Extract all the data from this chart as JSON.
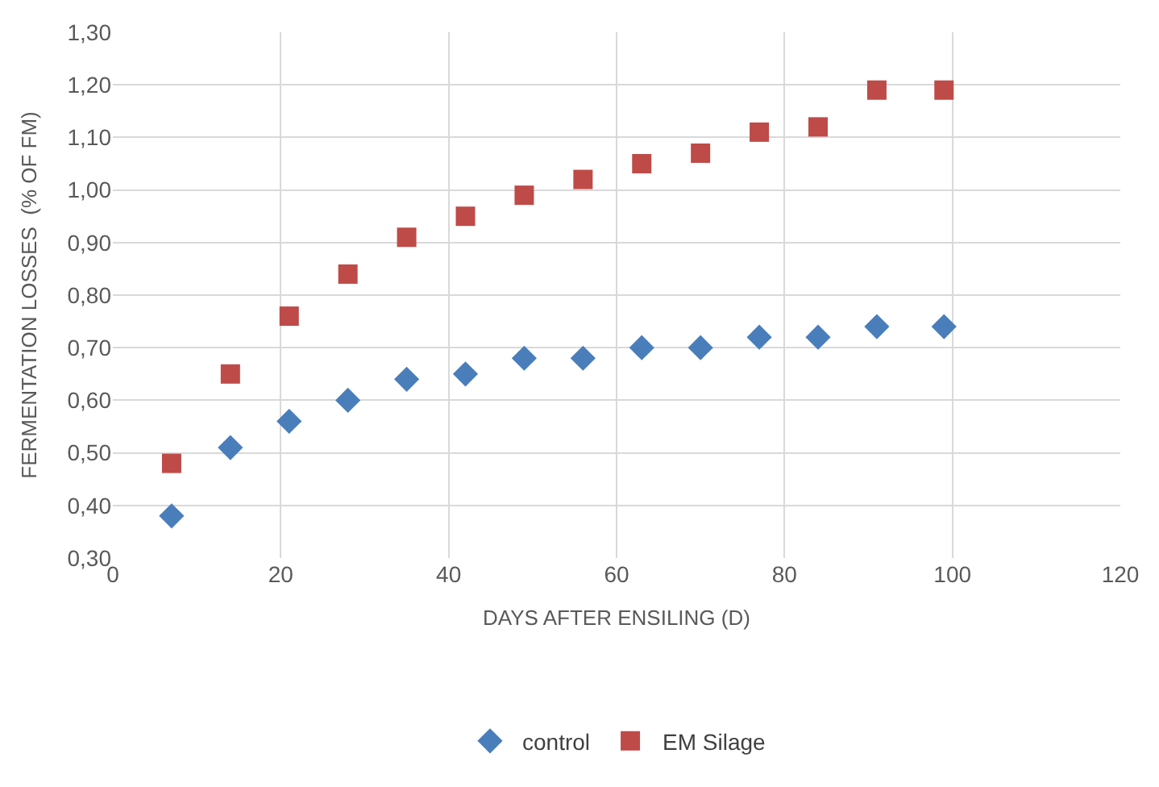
{
  "chart_data": {
    "type": "scatter",
    "xlabel": "DAYS AFTER ENSILING (D)",
    "ylabel": "FERMENTATION LOSSES  (% OF FM)",
    "x": [
      7,
      14,
      21,
      28,
      35,
      42,
      49,
      56,
      63,
      70,
      77,
      84,
      91,
      99
    ],
    "series": [
      {
        "name": "control",
        "color": "#4a7ebb",
        "marker": "diamond",
        "values": [
          0.38,
          0.51,
          0.56,
          0.6,
          0.64,
          0.65,
          0.68,
          0.68,
          0.7,
          0.7,
          0.72,
          0.72,
          0.74,
          0.74
        ]
      },
      {
        "name": "EM Silage",
        "color": "#be4b48",
        "marker": "square",
        "values": [
          0.48,
          0.65,
          0.76,
          0.84,
          0.91,
          0.95,
          0.99,
          1.02,
          1.05,
          1.07,
          1.11,
          1.12,
          1.19,
          1.19
        ]
      }
    ],
    "xlim": [
      0,
      120
    ],
    "xticks": [
      0,
      20,
      40,
      60,
      80,
      100,
      120
    ],
    "ylim": [
      0.3,
      1.3
    ],
    "yticks": [
      {
        "value": 0.3,
        "label": "0,30"
      },
      {
        "value": 0.4,
        "label": "0,40"
      },
      {
        "value": 0.5,
        "label": "0,50"
      },
      {
        "value": 0.6,
        "label": "0,60"
      },
      {
        "value": 0.7,
        "label": "0,70"
      },
      {
        "value": 0.8,
        "label": "0,80"
      },
      {
        "value": 0.9,
        "label": "0,90"
      },
      {
        "value": 1.0,
        "label": "1,00"
      },
      {
        "value": 1.1,
        "label": "1,10"
      },
      {
        "value": 1.2,
        "label": "1,20"
      },
      {
        "value": 1.3,
        "label": "1,30"
      }
    ],
    "grid": true,
    "legend": "bottom"
  }
}
